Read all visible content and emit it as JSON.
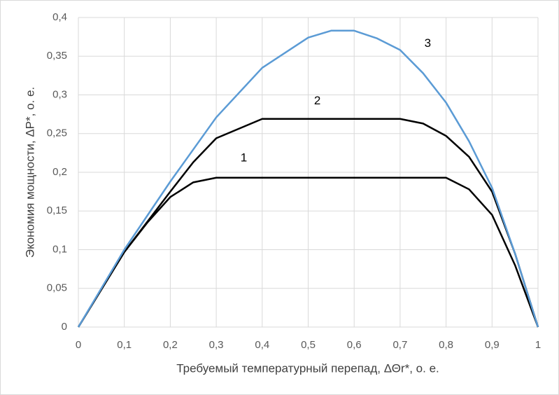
{
  "chart_data": {
    "type": "line",
    "x_label": "Требуемый температурный перепад, ΔΘr*, о. е.",
    "y_label": "Экономия мощности, ΔP*, о. е.",
    "xlim": [
      0,
      1
    ],
    "xticks": [
      0,
      {
        "value": 0.1,
        "label": "0,1"
      },
      {
        "value": 0.2,
        "label": "0,2"
      },
      {
        "value": 0.3,
        "label": "0,3"
      },
      {
        "value": 0.4,
        "label": "0,4"
      },
      {
        "value": 0.5,
        "label": "0,5"
      },
      {
        "value": 0.6,
        "label": "0,6"
      },
      {
        "value": 0.7,
        "label": "0,7"
      },
      {
        "value": 0.8,
        "label": "0,8"
      },
      {
        "value": 0.9,
        "label": "0,9"
      },
      1
    ],
    "ylim": [
      0,
      0.4
    ],
    "yticks": [
      0,
      {
        "value": 0.05,
        "label": "0,05"
      },
      {
        "value": 0.1,
        "label": "0,1"
      },
      {
        "value": 0.15,
        "label": "0,15"
      },
      {
        "value": 0.2,
        "label": "0,2"
      },
      {
        "value": 0.25,
        "label": "0,25"
      },
      {
        "value": 0.3,
        "label": "0,3"
      },
      {
        "value": 0.35,
        "label": "0,35"
      },
      {
        "value": 0.4,
        "label": "0,4"
      }
    ],
    "grid": true,
    "series": [
      {
        "name": "1",
        "color": "#000000",
        "x": [
          0,
          0.1,
          0.15,
          0.2,
          0.25,
          0.3,
          0.8,
          0.85,
          0.9,
          0.95,
          1
        ],
        "values": [
          0,
          0.097,
          0.135,
          0.168,
          0.187,
          0.193,
          0.193,
          0.178,
          0.145,
          0.08,
          0
        ]
      },
      {
        "name": "2",
        "color": "#000000",
        "x": [
          0,
          0.1,
          0.2,
          0.25,
          0.3,
          0.4,
          0.7,
          0.75,
          0.8,
          0.85,
          0.9,
          0.95,
          1
        ],
        "values": [
          0,
          0.097,
          0.175,
          0.213,
          0.244,
          0.269,
          0.269,
          0.263,
          0.247,
          0.22,
          0.175,
          0.095,
          0
        ]
      },
      {
        "name": "3",
        "color": "#5b9bd5",
        "x": [
          0,
          0.1,
          0.2,
          0.3,
          0.4,
          0.5,
          0.55,
          0.6,
          0.65,
          0.7,
          0.75,
          0.8,
          0.85,
          0.9,
          0.95,
          1
        ],
        "values": [
          0,
          0.1,
          0.188,
          0.271,
          0.335,
          0.374,
          0.383,
          0.383,
          0.373,
          0.358,
          0.328,
          0.29,
          0.24,
          0.18,
          0.095,
          0
        ]
      }
    ]
  }
}
